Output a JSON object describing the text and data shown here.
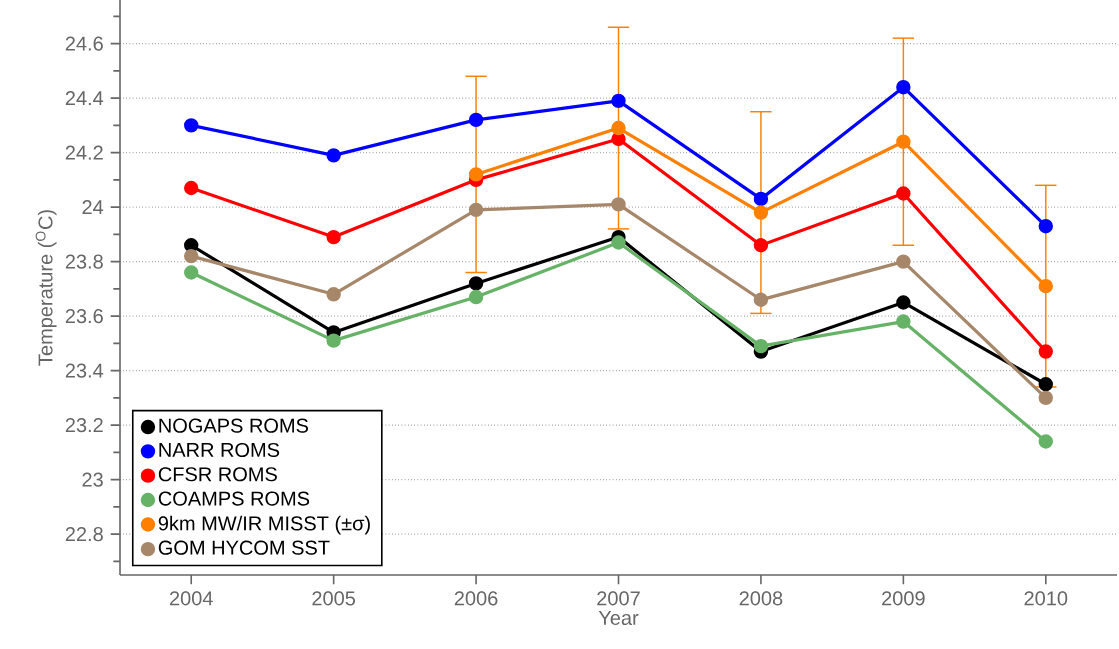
{
  "chart_data": {
    "type": "line",
    "xlabel": "Year",
    "ylabel": "Temperature ($^{O}$C)",
    "x": [
      2004,
      2005,
      2006,
      2007,
      2008,
      2009,
      2010
    ],
    "xlim": [
      2003.5,
      2010.5
    ],
    "xticks": [
      2004,
      2005,
      2006,
      2007,
      2008,
      2009,
      2010
    ],
    "ylim": [
      22.65,
      24.76
    ],
    "yticks": [
      22.8,
      23,
      23.2,
      23.4,
      23.6,
      23.8,
      24,
      24.2,
      24.4,
      24.6
    ],
    "grid": "y",
    "legend": "bottom left",
    "marker": "circle",
    "line_style": "solid",
    "series": [
      {
        "name": "NOGAPS ROMS",
        "color": "#000000",
        "values": [
          23.86,
          23.54,
          23.72,
          23.89,
          23.47,
          23.65,
          23.35
        ]
      },
      {
        "name": "NARR ROMS",
        "color": "#0000ff",
        "values": [
          24.3,
          24.19,
          24.32,
          24.39,
          24.03,
          24.44,
          23.93
        ]
      },
      {
        "name": "CFSR ROMS",
        "color": "#ff0000",
        "values": [
          24.07,
          23.89,
          24.1,
          24.25,
          23.86,
          24.05,
          23.47
        ]
      },
      {
        "name": "COAMPS ROMS",
        "color": "#66b266",
        "values": [
          23.76,
          23.51,
          23.67,
          23.87,
          23.49,
          23.58,
          23.14
        ]
      },
      {
        "name": "9km MW/IR MISST (±σ)",
        "color": "#ff8000",
        "values": [
          null,
          null,
          24.12,
          24.29,
          23.98,
          24.24,
          23.71
        ],
        "errors": [
          null,
          null,
          0.36,
          0.37,
          0.37,
          0.38,
          0.37
        ]
      },
      {
        "name": "GOM HYCOM SST",
        "color": "#a6876a",
        "values": [
          23.82,
          23.68,
          23.99,
          24.01,
          23.66,
          23.8,
          23.3
        ]
      }
    ]
  }
}
